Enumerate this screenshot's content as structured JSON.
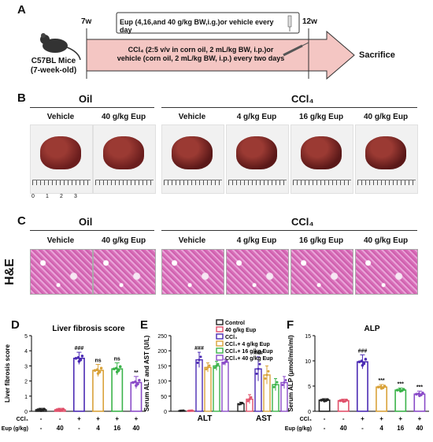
{
  "panels": {
    "A": {
      "letter": "A",
      "mouse_line1": "C57BL Mice",
      "mouse_line2": "(7-week-old)",
      "week_start": "7w",
      "week_end": "12w",
      "treatment_top": "Eup (4,16,and 40 g/kg BW,i.g.)or vehicle every day",
      "treatment_bottom_1": "CCl₄ (2:5 v/v in corn oil, 2 mL/kg BW, i.p.)or",
      "treatment_bottom_2": "vehicle (corn oil, 2 mL/kg BW, i.p.) every two days",
      "endpoint": "Sacrifice"
    },
    "B": {
      "letter": "B",
      "group_oil": "Oil",
      "group_ccl4": "CCl₄",
      "labels": [
        "Vehicle",
        "40 g/kg Eup",
        "Vehicle",
        "4 g/kg Eup",
        "16 g/kg Eup",
        "40 g/kg Eup"
      ],
      "ruler_marks": [
        "0",
        "1",
        "2",
        "3"
      ]
    },
    "C": {
      "letter": "C",
      "stain": "H&E",
      "group_oil": "Oil",
      "group_ccl4": "CCl₄",
      "labels": [
        "Vehicle",
        "40 g/kg Eup",
        "Vehicle",
        "4 g/kg Eup",
        "16 g/kg Eup",
        "40 g/kg Eup"
      ]
    },
    "D": {
      "letter": "D",
      "title": "Liver fibrosis score",
      "ylabel": "Liver fibrosis score",
      "ccl4_label": "CCl₄",
      "eup_label": "Eup (g/kg)",
      "ccl4_row": [
        "-",
        "-",
        "+",
        "+",
        "+",
        "+"
      ],
      "eup_row": [
        "-",
        "40",
        "-",
        "4",
        "16",
        "40"
      ],
      "y_ticks": [
        "0",
        "1",
        "2",
        "3",
        "4",
        "5"
      ],
      "sig": [
        "",
        "",
        "###",
        "ns",
        "ns",
        "**"
      ]
    },
    "E": {
      "letter": "E",
      "ylabel": "Serum ALT and AST (U/L)",
      "y_ticks": [
        "0",
        "50",
        "100",
        "150",
        "200",
        "250"
      ],
      "groups": [
        "ALT",
        "AST"
      ],
      "legend": [
        "Control",
        "40 g/kg Eup",
        "CCl₄",
        "CCl₄+ 4 g/kg Eup",
        "CCl₄+ 16 g/kg Eup",
        "CCl₄+ 40 g/kg Eup"
      ],
      "sig_ALT": "###",
      "sig_AST": "###"
    },
    "F": {
      "letter": "F",
      "title": "ALP",
      "ylabel": "Serum ALP (μmol/min/ml)",
      "ccl4_label": "CCl₄",
      "eup_label": "Eup (g/kg)",
      "ccl4_row": [
        "-",
        "-",
        "+",
        "+",
        "+",
        "+"
      ],
      "eup_row": [
        "-",
        "40",
        "-",
        "4",
        "16",
        "40"
      ],
      "y_ticks": [
        "0",
        "5",
        "10",
        "15"
      ],
      "sig": [
        "",
        "",
        "###",
        "***",
        "***",
        "***"
      ]
    }
  },
  "colors": {
    "control": "#222222",
    "eup40": "#e0506a",
    "ccl4": "#4b2bb3",
    "ccl4_eup4": "#d9a23a",
    "ccl4_eup16": "#3bb34a",
    "ccl4_eup40": "#8a4bc8",
    "arrow": "#f4c6c3"
  },
  "chart_data": [
    {
      "type": "bar",
      "title": "Liver fibrosis score",
      "ylabel": "Liver fibrosis score",
      "categories": [
        "-/-",
        "-/40",
        "+/-",
        "+/4",
        "+/16",
        "+/40"
      ],
      "values": [
        0.1,
        0.1,
        3.5,
        2.7,
        2.8,
        1.9
      ],
      "errors": [
        0.1,
        0.1,
        0.4,
        0.4,
        0.4,
        0.4
      ],
      "ylim": [
        0,
        5
      ]
    },
    {
      "type": "bar",
      "ylabel": "Serum ALT and AST (U/L)",
      "categories": [
        "ALT",
        "AST"
      ],
      "series": [
        {
          "name": "Control",
          "values": [
            2,
            25
          ],
          "errors": [
            1,
            5
          ]
        },
        {
          "name": "40 g/kg Eup",
          "values": [
            2,
            40
          ],
          "errors": [
            1,
            15
          ]
        },
        {
          "name": "CCl₄",
          "values": [
            170,
            140
          ],
          "errors": [
            25,
            40
          ]
        },
        {
          "name": "CCl₄+ 4 g/kg Eup",
          "values": [
            145,
            120
          ],
          "errors": [
            15,
            30
          ]
        },
        {
          "name": "CCl₄+ 16 g/kg Eup",
          "values": [
            150,
            88
          ],
          "errors": [
            15,
            20
          ]
        },
        {
          "name": "CCl₄+ 40 g/kg Eup",
          "values": [
            162,
            95
          ],
          "errors": [
            10,
            20
          ]
        }
      ],
      "ylim": [
        0,
        250
      ]
    },
    {
      "type": "bar",
      "title": "ALP",
      "ylabel": "Serum ALP (μmol/min/ml)",
      "categories": [
        "-/-",
        "-/40",
        "+/-",
        "+/4",
        "+/16",
        "+/40"
      ],
      "values": [
        2.2,
        2.1,
        9.8,
        4.8,
        4.2,
        3.4
      ],
      "errors": [
        0.3,
        0.3,
        1.4,
        0.5,
        0.4,
        0.6
      ],
      "ylim": [
        0,
        15
      ]
    }
  ]
}
